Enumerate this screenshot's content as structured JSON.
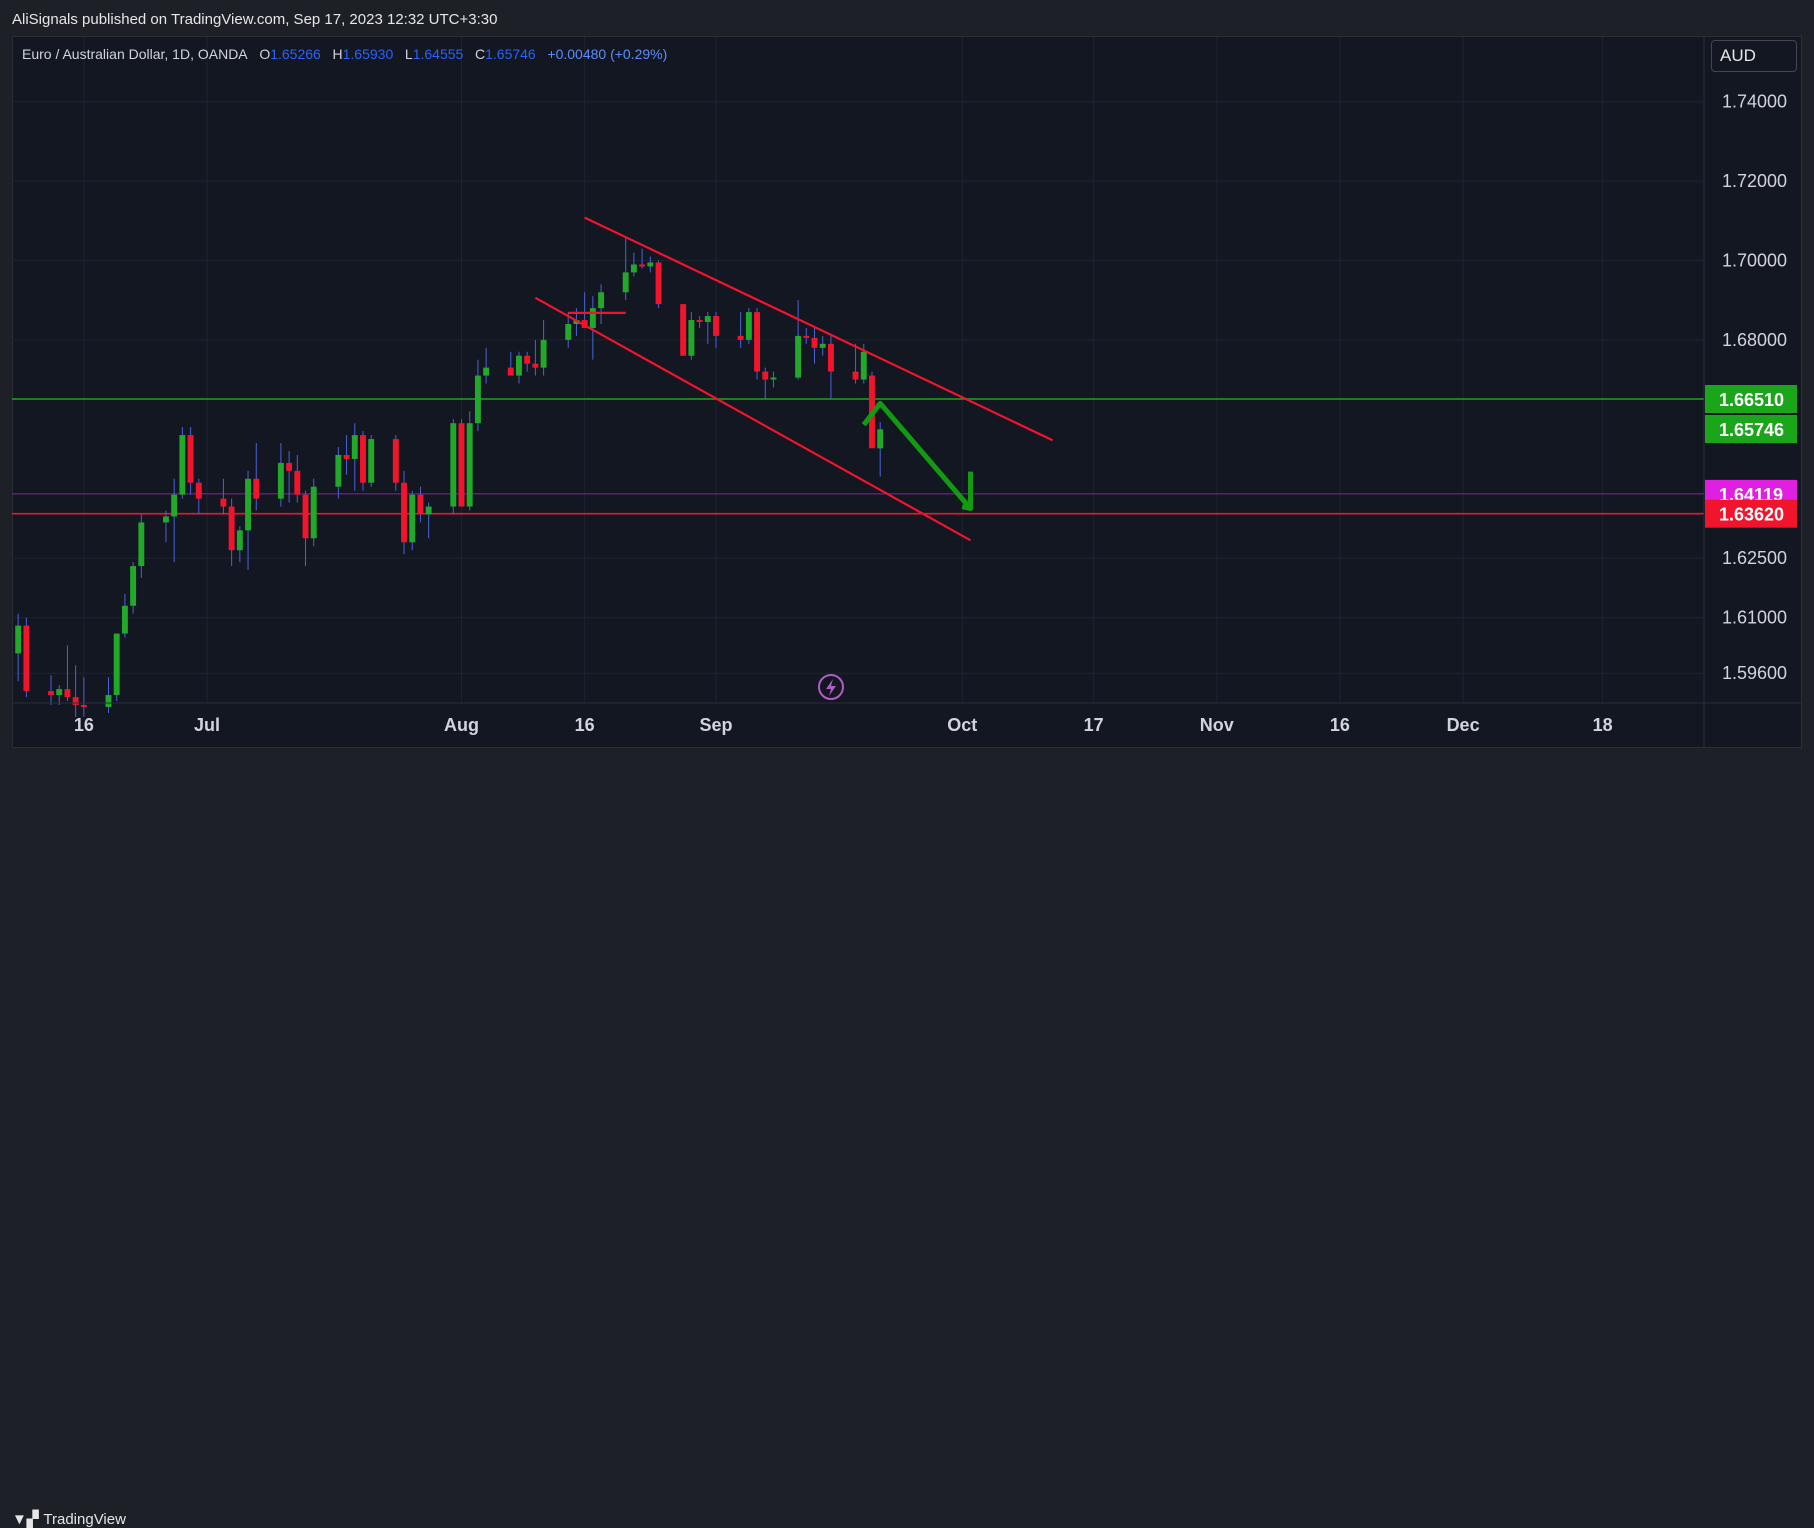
{
  "header": {
    "published_text": "AliSignals published on TradingView.com, Sep 17, 2023 12:32 UTC+3:30"
  },
  "legend": {
    "symbol": "Euro / Australian Dollar, 1D, OANDA",
    "open_label": "O",
    "open_value": "1.65266",
    "high_label": "H",
    "high_value": "1.65930",
    "low_label": "L",
    "low_value": "1.64555",
    "close_label": "C",
    "close_value": "1.65746",
    "change": "+0.00480 (+0.29%)"
  },
  "currency_button": "AUD",
  "footer": {
    "brand": "TradingView",
    "brand_icon": "tradingview-logo-icon"
  },
  "colors": {
    "bull": "#089981",
    "bull_fill": "#1f9e3a",
    "bear": "#f23645",
    "background": "#131722",
    "green_line": "#1aa51a",
    "red_line": "#f0142d",
    "magenta": "#e020e0",
    "arrow": "#129a12"
  },
  "chart_data": {
    "type": "candlestick",
    "title": "",
    "y_axis": {
      "ticks": [
        "1.74000",
        "1.72000",
        "1.70000",
        "1.68000",
        "1.66510",
        "1.65746",
        "1.64119",
        "1.63620",
        "1.62500",
        "1.61000",
        "1.59600"
      ],
      "range": [
        1.5885,
        1.748
      ]
    },
    "x_axis": {
      "tick_labels": [
        "16",
        "Jul",
        "Aug",
        "16",
        "Sep",
        "Oct",
        "17",
        "Nov",
        "16",
        "Dec",
        "18"
      ]
    },
    "price_labels": [
      {
        "value": "1.66510",
        "color": "#1aa51a"
      },
      {
        "value": "1.65746",
        "color": "#1aa51a"
      },
      {
        "value": "1.64119",
        "color": "#e020e0"
      },
      {
        "value": "1.63620",
        "color": "#f0142d"
      }
    ],
    "horizontal_lines": [
      {
        "name": "resistance",
        "value": 1.6651,
        "color": "#1aa51a"
      },
      {
        "name": "support",
        "value": 1.6362,
        "color": "#f0142d"
      },
      {
        "name": "level",
        "value": 1.6412,
        "color": "#8a1fa0"
      }
    ],
    "channel": {
      "upper": {
        "from": [
          "2023-08-16",
          1.7108
        ],
        "to": [
          "2023-10-12",
          1.6547
        ]
      },
      "lower": {
        "from": [
          "2023-08-10",
          1.6906
        ],
        "to": [
          "2023-10-02",
          1.6295
        ]
      },
      "mid_segment": {
        "from": [
          "2023-08-14",
          1.6868
        ],
        "to": [
          "2023-08-21",
          1.6868
        ]
      }
    },
    "forecast_arrow": {
      "points": [
        [
          "2023-09-19",
          1.6586
        ],
        [
          "2023-09-21",
          1.664
        ],
        [
          "2023-10-02",
          1.6375
        ]
      ],
      "head": [
        [
          "2023-10-01",
          1.638
        ],
        [
          "2023-10-02",
          1.6375
        ],
        [
          "2023-10-02",
          1.6468
        ]
      ]
    },
    "candles": [
      {
        "d": "2023-06-08",
        "o": 1.601,
        "h": 1.611,
        "l": 1.594,
        "c": 1.608
      },
      {
        "d": "2023-06-09",
        "o": 1.608,
        "h": 1.61,
        "l": 1.59,
        "c": 1.5915
      },
      {
        "d": "2023-06-12",
        "o": 1.5915,
        "h": 1.5955,
        "l": 1.588,
        "c": 1.5905
      },
      {
        "d": "2023-06-13",
        "o": 1.5905,
        "h": 1.593,
        "l": 1.588,
        "c": 1.592
      },
      {
        "d": "2023-06-14",
        "o": 1.592,
        "h": 1.603,
        "l": 1.589,
        "c": 1.59
      },
      {
        "d": "2023-06-15",
        "o": 1.59,
        "h": 1.598,
        "l": 1.585,
        "c": 1.588
      },
      {
        "d": "2023-06-16",
        "o": 1.588,
        "h": 1.595,
        "l": 1.585,
        "c": 1.5875
      },
      {
        "d": "2023-06-19",
        "o": 1.5875,
        "h": 1.595,
        "l": 1.586,
        "c": 1.5905
      },
      {
        "d": "2023-06-20",
        "o": 1.5905,
        "h": 1.606,
        "l": 1.589,
        "c": 1.606
      },
      {
        "d": "2023-06-21",
        "o": 1.606,
        "h": 1.616,
        "l": 1.605,
        "c": 1.613
      },
      {
        "d": "2023-06-22",
        "o": 1.613,
        "h": 1.624,
        "l": 1.611,
        "c": 1.623
      },
      {
        "d": "2023-06-23",
        "o": 1.623,
        "h": 1.636,
        "l": 1.62,
        "c": 1.634
      },
      {
        "d": "2023-06-26",
        "o": 1.634,
        "h": 1.637,
        "l": 1.629,
        "c": 1.6355
      },
      {
        "d": "2023-06-27",
        "o": 1.6355,
        "h": 1.645,
        "l": 1.624,
        "c": 1.641
      },
      {
        "d": "2023-06-28",
        "o": 1.641,
        "h": 1.658,
        "l": 1.64,
        "c": 1.656
      },
      {
        "d": "2023-06-29",
        "o": 1.656,
        "h": 1.658,
        "l": 1.641,
        "c": 1.644
      },
      {
        "d": "2023-06-30",
        "o": 1.644,
        "h": 1.645,
        "l": 1.636,
        "c": 1.64
      },
      {
        "d": "2023-07-03",
        "o": 1.64,
        "h": 1.645,
        "l": 1.636,
        "c": 1.638
      },
      {
        "d": "2023-07-04",
        "o": 1.638,
        "h": 1.64,
        "l": 1.623,
        "c": 1.627
      },
      {
        "d": "2023-07-05",
        "o": 1.627,
        "h": 1.633,
        "l": 1.624,
        "c": 1.632
      },
      {
        "d": "2023-07-06",
        "o": 1.632,
        "h": 1.647,
        "l": 1.622,
        "c": 1.645
      },
      {
        "d": "2023-07-07",
        "o": 1.645,
        "h": 1.654,
        "l": 1.637,
        "c": 1.64
      },
      {
        "d": "2023-07-10",
        "o": 1.64,
        "h": 1.654,
        "l": 1.638,
        "c": 1.649
      },
      {
        "d": "2023-07-11",
        "o": 1.649,
        "h": 1.652,
        "l": 1.639,
        "c": 1.647
      },
      {
        "d": "2023-07-12",
        "o": 1.647,
        "h": 1.651,
        "l": 1.639,
        "c": 1.641
      },
      {
        "d": "2023-07-13",
        "o": 1.641,
        "h": 1.642,
        "l": 1.623,
        "c": 1.63
      },
      {
        "d": "2023-07-14",
        "o": 1.63,
        "h": 1.645,
        "l": 1.628,
        "c": 1.643
      },
      {
        "d": "2023-07-17",
        "o": 1.643,
        "h": 1.653,
        "l": 1.64,
        "c": 1.651
      },
      {
        "d": "2023-07-18",
        "o": 1.651,
        "h": 1.656,
        "l": 1.646,
        "c": 1.65
      },
      {
        "d": "2023-07-19",
        "o": 1.65,
        "h": 1.659,
        "l": 1.642,
        "c": 1.656
      },
      {
        "d": "2023-07-20",
        "o": 1.656,
        "h": 1.657,
        "l": 1.642,
        "c": 1.644
      },
      {
        "d": "2023-07-21",
        "o": 1.644,
        "h": 1.656,
        "l": 1.643,
        "c": 1.655
      },
      {
        "d": "2023-07-24",
        "o": 1.655,
        "h": 1.656,
        "l": 1.642,
        "c": 1.644
      },
      {
        "d": "2023-07-25",
        "o": 1.644,
        "h": 1.647,
        "l": 1.626,
        "c": 1.629
      },
      {
        "d": "2023-07-26",
        "o": 1.629,
        "h": 1.642,
        "l": 1.627,
        "c": 1.641
      },
      {
        "d": "2023-07-27",
        "o": 1.641,
        "h": 1.643,
        "l": 1.634,
        "c": 1.636
      },
      {
        "d": "2023-07-28",
        "o": 1.636,
        "h": 1.639,
        "l": 1.63,
        "c": 1.638
      },
      {
        "d": "2023-07-31",
        "o": 1.638,
        "h": 1.66,
        "l": 1.636,
        "c": 1.659
      },
      {
        "d": "2023-08-01",
        "o": 1.659,
        "h": 1.66,
        "l": 1.638,
        "c": 1.638
      },
      {
        "d": "2023-08-02",
        "o": 1.638,
        "h": 1.662,
        "l": 1.637,
        "c": 1.659
      },
      {
        "d": "2023-08-03",
        "o": 1.659,
        "h": 1.675,
        "l": 1.657,
        "c": 1.671
      },
      {
        "d": "2023-08-04",
        "o": 1.671,
        "h": 1.678,
        "l": 1.669,
        "c": 1.673
      },
      {
        "d": "2023-08-07",
        "o": 1.673,
        "h": 1.677,
        "l": 1.671,
        "c": 1.671
      },
      {
        "d": "2023-08-08",
        "o": 1.671,
        "h": 1.677,
        "l": 1.669,
        "c": 1.676
      },
      {
        "d": "2023-08-09",
        "o": 1.676,
        "h": 1.677,
        "l": 1.672,
        "c": 1.674
      },
      {
        "d": "2023-08-10",
        "o": 1.674,
        "h": 1.68,
        "l": 1.671,
        "c": 1.673
      },
      {
        "d": "2023-08-11",
        "o": 1.673,
        "h": 1.685,
        "l": 1.671,
        "c": 1.68
      },
      {
        "d": "2023-08-14",
        "o": 1.68,
        "h": 1.687,
        "l": 1.678,
        "c": 1.684
      },
      {
        "d": "2023-08-15",
        "o": 1.684,
        "h": 1.688,
        "l": 1.681,
        "c": 1.685
      },
      {
        "d": "2023-08-16",
        "o": 1.685,
        "h": 1.692,
        "l": 1.683,
        "c": 1.683
      },
      {
        "d": "2023-08-17",
        "o": 1.683,
        "h": 1.691,
        "l": 1.675,
        "c": 1.688
      },
      {
        "d": "2023-08-18",
        "o": 1.688,
        "h": 1.694,
        "l": 1.684,
        "c": 1.692
      },
      {
        "d": "2023-08-21",
        "o": 1.692,
        "h": 1.706,
        "l": 1.69,
        "c": 1.697
      },
      {
        "d": "2023-08-22",
        "o": 1.697,
        "h": 1.702,
        "l": 1.696,
        "c": 1.699
      },
      {
        "d": "2023-08-23",
        "o": 1.699,
        "h": 1.703,
        "l": 1.698,
        "c": 1.6985
      },
      {
        "d": "2023-08-24",
        "o": 1.6985,
        "h": 1.701,
        "l": 1.697,
        "c": 1.6995
      },
      {
        "d": "2023-08-25",
        "o": 1.6995,
        "h": 1.7,
        "l": 1.688,
        "c": 1.689
      },
      {
        "d": "2023-08-28",
        "o": 1.689,
        "h": 1.689,
        "l": 1.676,
        "c": 1.676
      },
      {
        "d": "2023-08-29",
        "o": 1.676,
        "h": 1.687,
        "l": 1.675,
        "c": 1.685
      },
      {
        "d": "2023-08-30",
        "o": 1.685,
        "h": 1.686,
        "l": 1.683,
        "c": 1.6845
      },
      {
        "d": "2023-08-31",
        "o": 1.6845,
        "h": 1.687,
        "l": 1.679,
        "c": 1.686
      },
      {
        "d": "2023-09-01",
        "o": 1.686,
        "h": 1.687,
        "l": 1.678,
        "c": 1.681
      },
      {
        "d": "2023-09-04",
        "o": 1.681,
        "h": 1.687,
        "l": 1.678,
        "c": 1.68
      },
      {
        "d": "2023-09-05",
        "o": 1.68,
        "h": 1.688,
        "l": 1.679,
        "c": 1.687
      },
      {
        "d": "2023-09-06",
        "o": 1.687,
        "h": 1.688,
        "l": 1.67,
        "c": 1.672
      },
      {
        "d": "2023-09-07",
        "o": 1.672,
        "h": 1.673,
        "l": 1.665,
        "c": 1.67
      },
      {
        "d": "2023-09-08",
        "o": 1.67,
        "h": 1.672,
        "l": 1.668,
        "c": 1.6705
      },
      {
        "d": "2023-09-11",
        "o": 1.6705,
        "h": 1.69,
        "l": 1.67,
        "c": 1.681
      },
      {
        "d": "2023-09-12",
        "o": 1.681,
        "h": 1.683,
        "l": 1.679,
        "c": 1.6805
      },
      {
        "d": "2023-09-13",
        "o": 1.6805,
        "h": 1.683,
        "l": 1.674,
        "c": 1.678
      },
      {
        "d": "2023-09-14",
        "o": 1.678,
        "h": 1.681,
        "l": 1.676,
        "c": 1.679
      },
      {
        "d": "2023-09-15",
        "o": 1.679,
        "h": 1.681,
        "l": 1.665,
        "c": 1.672
      },
      {
        "d": "2023-09-18",
        "o": 1.672,
        "h": 1.679,
        "l": 1.669,
        "c": 1.67
      },
      {
        "d": "2023-09-19",
        "o": 1.67,
        "h": 1.679,
        "l": 1.669,
        "c": 1.677
      },
      {
        "d": "2023-09-20",
        "o": 1.671,
        "h": 1.672,
        "l": 1.653,
        "c": 1.6527
      },
      {
        "d": "2023-09-21",
        "o": 1.65266,
        "h": 1.6593,
        "l": 1.64555,
        "c": 1.65746
      }
    ]
  }
}
